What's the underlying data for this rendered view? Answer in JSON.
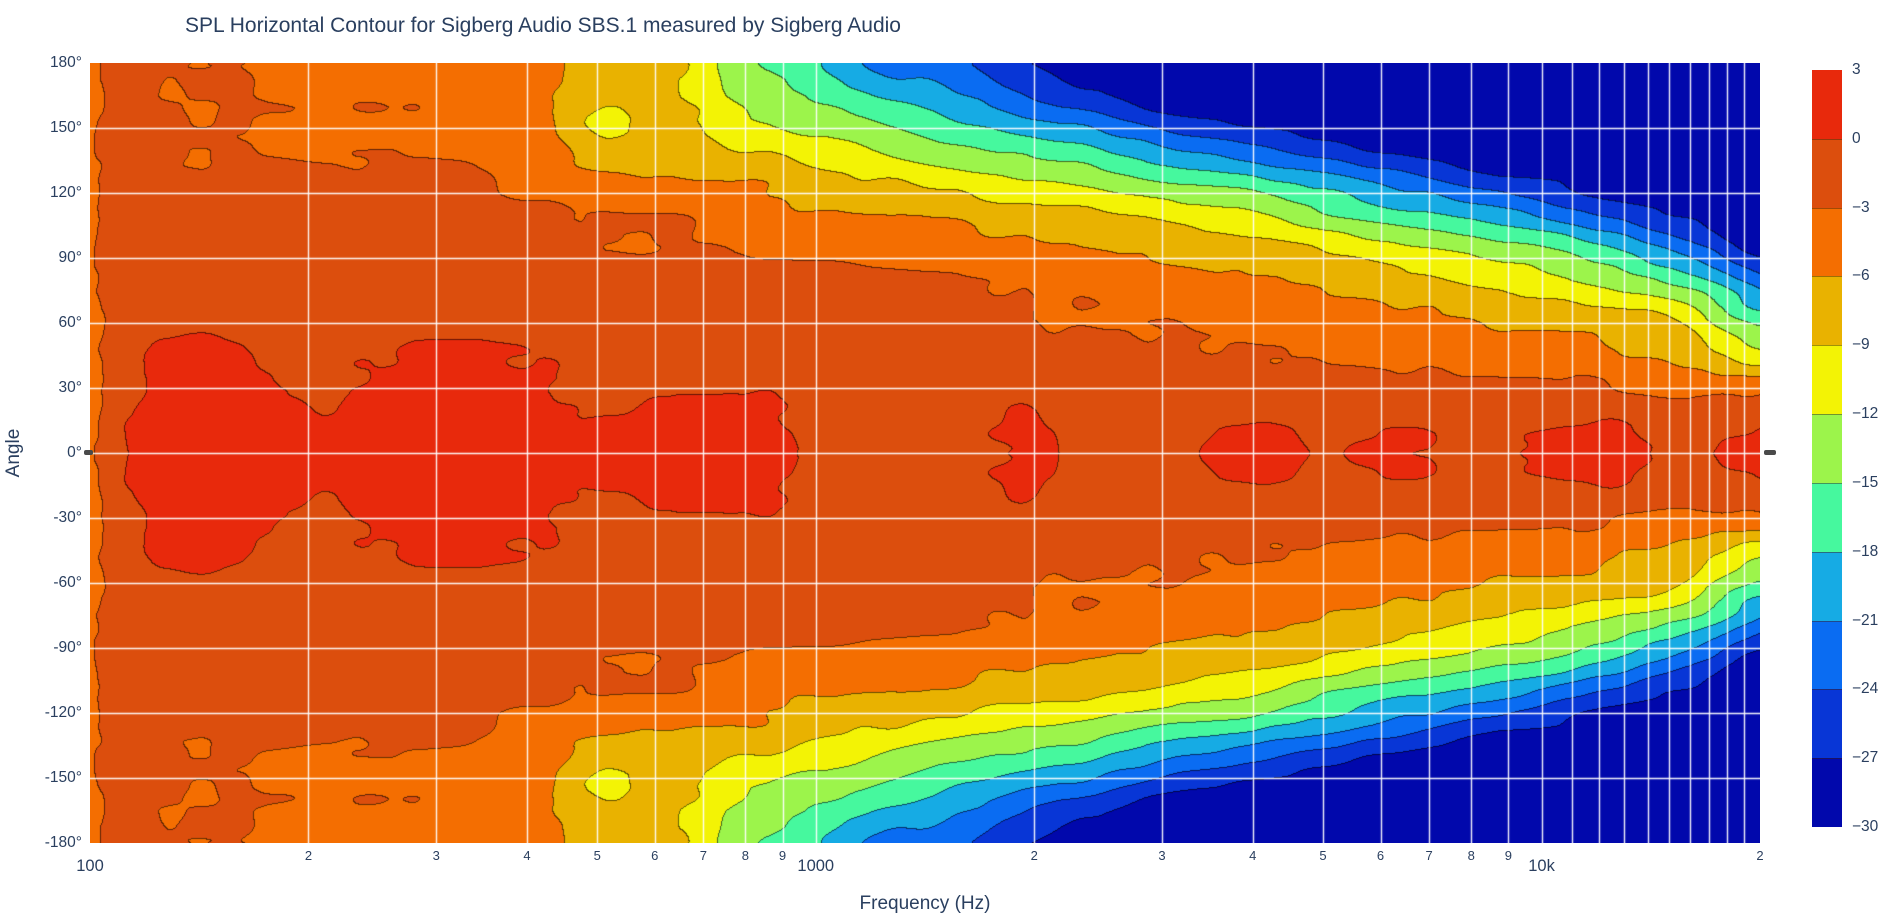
{
  "page": {
    "title": "SPL Horizontal Contour for Sigberg Audio SBS.1 measured by Sigberg Audio"
  },
  "chart_data": {
    "type": "heatmap",
    "subtype": "filled-contour",
    "title": "SPL Horizontal Contour for Sigberg Audio SBS.1 measured by Sigberg Audio",
    "xlabel": "Frequency (Hz)",
    "ylabel": "Angle",
    "x_scale": "log",
    "x_range": [
      100,
      20000
    ],
    "y_range": [
      -180,
      180
    ],
    "y_tick_step_deg": 30,
    "y_tick_labels": [
      "180°",
      "150°",
      "120°",
      "90°",
      "60°",
      "30°",
      "0°",
      "-30°",
      "-60°",
      "-90°",
      "-120°",
      "-150°",
      "-180°"
    ],
    "x_major_ticks": [
      {
        "value": 100,
        "label": "100"
      },
      {
        "value": 1000,
        "label": "1000"
      },
      {
        "value": 10000,
        "label": "10k"
      }
    ],
    "x_minor_ticks": [
      200,
      300,
      400,
      500,
      600,
      700,
      800,
      900,
      2000,
      3000,
      4000,
      5000,
      6000,
      7000,
      8000,
      9000,
      20000
    ],
    "x_gridlines": [
      200,
      300,
      400,
      500,
      600,
      700,
      800,
      900,
      1000,
      2000,
      3000,
      4000,
      5000,
      6000,
      7000,
      8000,
      9000,
      10000,
      11000,
      12000,
      13000,
      14000,
      15000,
      16000,
      17000,
      18000,
      19000
    ],
    "y_gridlines": [
      -150,
      -120,
      -90,
      -60,
      -30,
      0,
      30,
      60,
      90,
      120,
      150
    ],
    "grid_color": "#ffffff",
    "contour_line_darken": 0.42,
    "levels": {
      "min": -30,
      "max": 3,
      "step": 3,
      "units": "dB"
    },
    "colorbar": {
      "tick_labels": [
        "3",
        "0",
        "−3",
        "−6",
        "−9",
        "−12",
        "−15",
        "−18",
        "−21",
        "−24",
        "−27",
        "−30"
      ],
      "tick_values": [
        3,
        0,
        -3,
        -6,
        -9,
        -12,
        -15,
        -18,
        -21,
        -24,
        -27,
        -30
      ],
      "band_colors_top_to_bottom": [
        "#e8290c",
        "#dc4e0d",
        "#f46e01",
        "#e9b200",
        "#f3f305",
        "#9cf44b",
        "#46f89e",
        "#16abe4",
        "#0a6cf2",
        "#0836d6",
        "#0108ac"
      ]
    },
    "text_color": "#2a3f5f",
    "frequencies_hz": [
      100,
      105,
      125,
      160,
      200,
      250,
      315,
      400,
      500,
      630,
      800,
      1000,
      1250,
      1600,
      2000,
      2500,
      3150,
      4000,
      5000,
      6300,
      8000,
      10000,
      12500,
      16000,
      20000
    ],
    "angles_deg": [
      0,
      15,
      30,
      45,
      60,
      75,
      90,
      105,
      120,
      135,
      150,
      165,
      180
    ],
    "symmetric_about_zero": true,
    "spl_db_by_angle": [
      [
        -4.0,
        -1.6,
        1.6,
        1.8,
        0.4,
        1.4,
        1.7,
        1.5,
        0.2,
        0.9,
        1.2,
        -0.6,
        -0.4,
        -0.8,
        1.1,
        -0.9,
        -1.0,
        0.8,
        -0.5,
        0.6,
        -0.4,
        0.7,
        1.4,
        -0.6,
        1.6
      ],
      [
        -4.0,
        -1.7,
        1.4,
        1.5,
        0.2,
        0.9,
        1.3,
        1.2,
        -0.5,
        0.2,
        0.6,
        -0.9,
        -0.8,
        -1.1,
        0.2,
        -1.2,
        -1.3,
        -0.6,
        -1.2,
        -0.9,
        -1.3,
        -1.1,
        0.0,
        -1.6,
        -0.4
      ],
      [
        -4.0,
        -1.8,
        1.0,
        1.1,
        -0.4,
        0.3,
        0.8,
        0.7,
        -1.1,
        -0.9,
        -0.8,
        -1.3,
        -1.3,
        -1.5,
        -1.4,
        -1.7,
        -1.8,
        -2.0,
        -2.2,
        -2.3,
        -2.5,
        -2.7,
        -3.0,
        -4.0,
        -4.5
      ],
      [
        -4.1,
        -1.9,
        0.4,
        0.5,
        -0.9,
        -0.5,
        0.1,
        0.1,
        -1.4,
        -1.5,
        -1.5,
        -1.7,
        -1.8,
        -2.0,
        -2.0,
        -2.2,
        -2.4,
        -2.7,
        -3.0,
        -3.3,
        -3.7,
        -4.2,
        -5.0,
        -6.5,
        -10.0
      ],
      [
        -4.1,
        -2.0,
        -0.6,
        -0.4,
        -1.3,
        -1.1,
        -0.7,
        -0.8,
        -1.7,
        -1.8,
        -1.9,
        -2.1,
        -2.2,
        -2.4,
        -2.5,
        -2.8,
        -3.1,
        -3.6,
        -4.2,
        -4.8,
        -5.5,
        -6.3,
        -7.5,
        -10.0,
        -15.0
      ],
      [
        -4.1,
        -2.1,
        -1.3,
        -1.2,
        -1.5,
        -1.4,
        -1.3,
        -1.4,
        -1.9,
        -2.1,
        -2.3,
        -2.5,
        -2.7,
        -3.0,
        -3.2,
        -3.6,
        -4.2,
        -5.0,
        -6.0,
        -7.0,
        -8.0,
        -9.2,
        -11.0,
        -14.5,
        -21.0
      ],
      [
        -4.2,
        -2.2,
        -1.6,
        -1.5,
        -1.7,
        -1.6,
        -1.6,
        -1.7,
        -2.2,
        -2.4,
        -2.8,
        -3.2,
        -3.6,
        -4.2,
        -4.6,
        -5.2,
        -6.0,
        -7.2,
        -8.8,
        -10.0,
        -11.5,
        -13.5,
        -16.5,
        -20.5,
        -26.5
      ],
      [
        -4.2,
        -2.2,
        -1.8,
        -1.7,
        -1.9,
        -1.8,
        -1.8,
        -2.0,
        -2.7,
        -3.0,
        -3.8,
        -4.5,
        -5.2,
        -6.0,
        -6.8,
        -7.8,
        -9.0,
        -10.5,
        -12.5,
        -14.5,
        -16.5,
        -19.0,
        -22.5,
        -26.0,
        -29.5
      ],
      [
        -4.2,
        -2.3,
        -2.0,
        -1.9,
        -2.1,
        -2.1,
        -2.2,
        -2.5,
        -4.2,
        -4.6,
        -5.5,
        -6.5,
        -7.5,
        -9.0,
        -10.0,
        -11.5,
        -13.0,
        -15.0,
        -17.5,
        -20.0,
        -22.5,
        -25.0,
        -27.5,
        -29.5,
        -30.0
      ],
      [
        -4.3,
        -2.4,
        -2.1,
        -2.1,
        -2.6,
        -2.5,
        -2.8,
        -3.2,
        -7.0,
        -6.5,
        -8.0,
        -9.5,
        -11.0,
        -13.0,
        -14.5,
        -16.5,
        -19.0,
        -21.5,
        -24.0,
        -26.0,
        -27.5,
        -29.0,
        -30.0,
        -30.0,
        -30.0
      ],
      [
        -4.3,
        -2.4,
        -2.2,
        -2.2,
        -3.2,
        -3.0,
        -3.6,
        -4.0,
        -9.8,
        -8.0,
        -10.5,
        -12.5,
        -14.5,
        -17.0,
        -19.5,
        -22.0,
        -25.0,
        -27.0,
        -28.5,
        -29.5,
        -30.0,
        -30.0,
        -30.0,
        -30.0,
        -30.0
      ],
      [
        -4.3,
        -2.5,
        -2.4,
        -2.3,
        -3.6,
        -3.4,
        -4.0,
        -4.4,
        -7.5,
        -8.8,
        -13.0,
        -15.5,
        -18.5,
        -21.0,
        -25.0,
        -26.5,
        -28.5,
        -29.5,
        -30.0,
        -30.0,
        -30.0,
        -30.0,
        -30.0,
        -30.0,
        -30.0
      ],
      [
        -4.4,
        -2.5,
        -2.5,
        -2.4,
        -3.8,
        -3.6,
        -4.2,
        -4.6,
        -7.0,
        -8.2,
        -14.5,
        -17.5,
        -21.5,
        -23.5,
        -27.5,
        -28.5,
        -29.5,
        -30.0,
        -30.0,
        -30.0,
        -30.0,
        -30.0,
        -30.0,
        -30.0,
        -30.0
      ]
    ]
  }
}
